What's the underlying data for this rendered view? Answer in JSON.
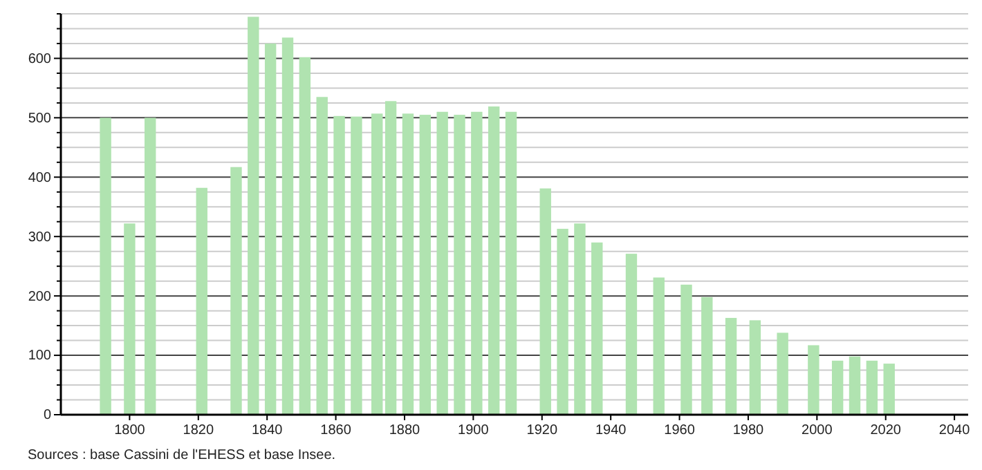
{
  "chart_data": {
    "type": "bar",
    "color": "#b0e3b0",
    "x": [
      1793,
      1800,
      1806,
      1821,
      1831,
      1836,
      1841,
      1846,
      1851,
      1856,
      1861,
      1866,
      1872,
      1876,
      1881,
      1886,
      1891,
      1896,
      1901,
      1906,
      1911,
      1921,
      1926,
      1931,
      1936,
      1946,
      1954,
      1962,
      1968,
      1975,
      1982,
      1990,
      1999,
      2006,
      2011,
      2016,
      2021
    ],
    "values": [
      500,
      322,
      500,
      382,
      417,
      670,
      625,
      635,
      602,
      535,
      503,
      502,
      507,
      528,
      507,
      505,
      510,
      505,
      510,
      519,
      510,
      381,
      313,
      322,
      290,
      271,
      231,
      219,
      198,
      163,
      159,
      138,
      117,
      91,
      98,
      91,
      86
    ],
    "xlim": [
      1780,
      2044
    ],
    "xticks": [
      1800,
      1820,
      1840,
      1860,
      1880,
      1900,
      1920,
      1940,
      1960,
      1980,
      2000,
      2020,
      2040
    ],
    "ylim": [
      0,
      675
    ],
    "yticks": [
      0,
      {
        "value": 25,
        "label": null
      },
      {
        "value": 50,
        "label": null
      },
      {
        "value": 75,
        "label": null
      },
      100,
      {
        "value": 125,
        "label": null
      },
      {
        "value": 150,
        "label": null
      },
      {
        "value": 175,
        "label": null
      },
      200,
      {
        "value": 225,
        "label": null
      },
      {
        "value": 250,
        "label": null
      },
      {
        "value": 275,
        "label": null
      },
      300,
      {
        "value": 325,
        "label": null
      },
      {
        "value": 350,
        "label": null
      },
      {
        "value": 375,
        "label": null
      },
      400,
      {
        "value": 425,
        "label": null
      },
      {
        "value": 450,
        "label": null
      },
      {
        "value": 475,
        "label": null
      },
      500,
      {
        "value": 525,
        "label": null
      },
      {
        "value": 550,
        "label": null
      },
      {
        "value": 575,
        "label": null
      },
      600,
      {
        "value": 625,
        "label": null
      },
      {
        "value": 650,
        "label": null
      },
      {
        "value": 675,
        "label": null
      }
    ],
    "grid": "y",
    "annotations": [
      "Sources : base Cassini de l'EHESS et base Insee."
    ]
  }
}
